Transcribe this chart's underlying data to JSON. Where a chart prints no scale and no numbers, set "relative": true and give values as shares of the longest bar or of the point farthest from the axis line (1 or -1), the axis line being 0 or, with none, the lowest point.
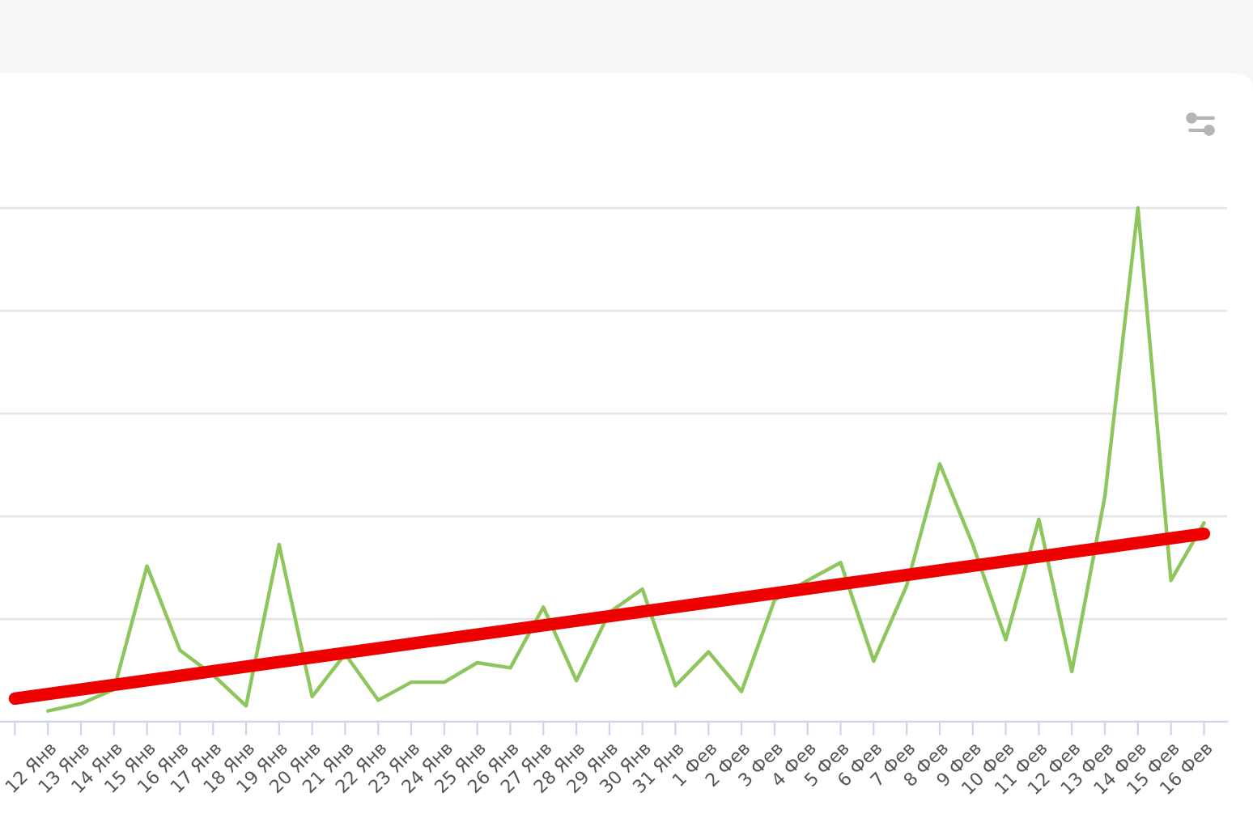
{
  "chart_data": {
    "type": "line",
    "relative": true,
    "grid": "y",
    "legend": false,
    "marker": "none",
    "line_style": "solid",
    "categories": [
      null,
      "12 Янв",
      "13 Янв",
      "14 Янв",
      "15 Янв",
      "16 Янв",
      "17 Янв",
      "18 Янв",
      "19 Янв",
      "20 Янв",
      "21 Янв",
      "22 Янв",
      "23 Янв",
      "24 Янв",
      "25 Янв",
      "26 Янв",
      "27 Янв",
      "28 Янв",
      "29 Янв",
      "30 Янв",
      "31 Янв",
      "1 Фев",
      "2 Фев",
      "3 Фев",
      "4 Фев",
      "5 Фев",
      "6 Фев",
      "7 Фев",
      "8 Фев",
      "9 Фев",
      "10 Фев",
      "11 Фев",
      "12 Фев",
      "13 Фев",
      "14 Фев",
      "15 Фев",
      "16 Фев"
    ],
    "series": [
      {
        "color": "#8cc65c",
        "values": [
          null,
          0.021,
          0.035,
          0.063,
          0.303,
          0.139,
          0.091,
          0.031,
          0.345,
          0.049,
          0.132,
          0.042,
          0.077,
          0.077,
          0.115,
          0.105,
          0.223,
          0.08,
          0.213,
          0.258,
          0.07,
          0.136,
          0.059,
          0.237,
          0.275,
          0.31,
          0.118,
          0.265,
          0.502,
          0.345,
          0.16,
          0.394,
          0.098,
          0.439,
          1,
          0.275,
          0.387
        ]
      },
      {
        "color": "#ee0000",
        "values": [
          0.045,
          null,
          null,
          null,
          null,
          null,
          null,
          null,
          null,
          null,
          null,
          null,
          null,
          null,
          null,
          null,
          null,
          null,
          null,
          null,
          null,
          null,
          null,
          null,
          null,
          null,
          null,
          null,
          null,
          null,
          null,
          null,
          null,
          null,
          null,
          null,
          0.366
        ]
      }
    ]
  }
}
